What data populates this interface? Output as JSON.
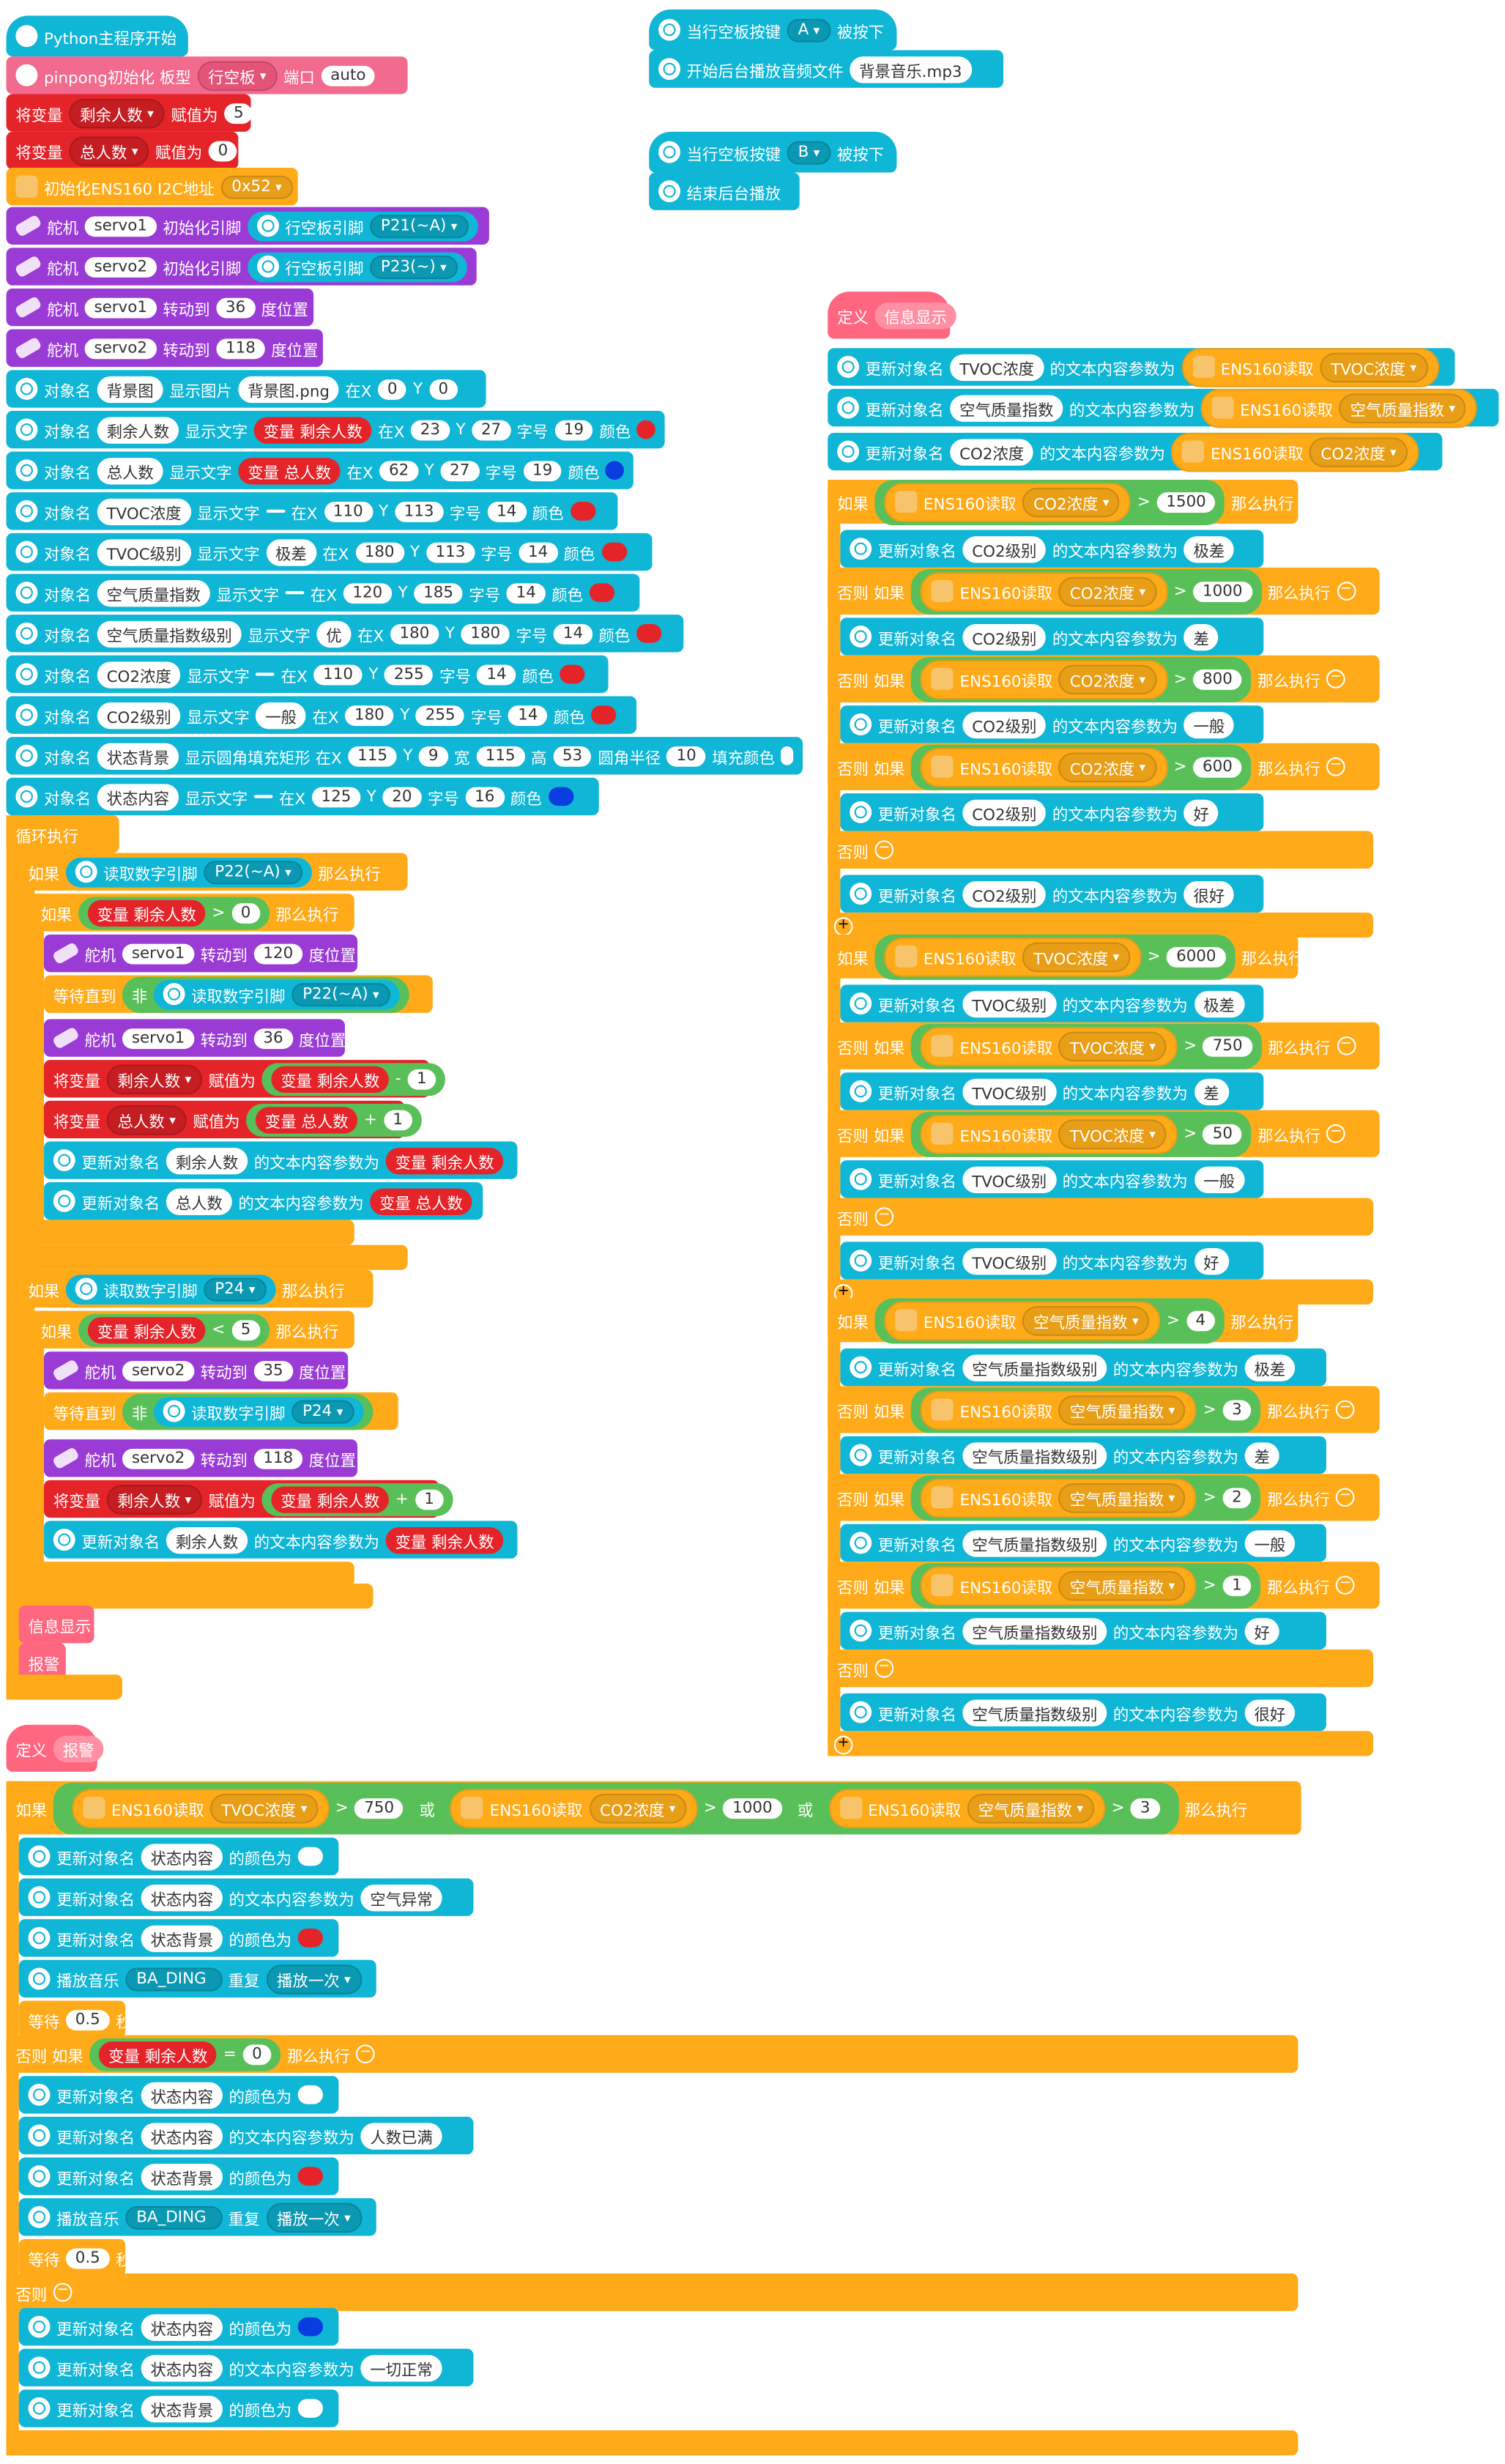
{
  "main": {
    "hat": "Python主程序开始",
    "init": {
      "label": "pinpong初始化 板型",
      "board": "行空板",
      "port_label": "端口",
      "port": "auto"
    },
    "set1": {
      "pre": "将变量",
      "var": "剩余人数",
      "mid": "赋值为",
      "val": "5"
    },
    "set2": {
      "pre": "将变量",
      "var": "总人数",
      "mid": "赋值为",
      "val": "0"
    },
    "ens": "初始化ENS160 I2C地址",
    "ens_addr": "0x52",
    "servo_init1": {
      "a": "舵机",
      "s": "servo1",
      "b": "初始化引脚",
      "c": "行空板引脚",
      "pin": "P21(~A)"
    },
    "servo_init2": {
      "a": "舵机",
      "s": "servo2",
      "b": "初始化引脚",
      "c": "行空板引脚",
      "pin": "P23(~)"
    },
    "servo_rot1": {
      "a": "舵机",
      "s": "servo1",
      "b": "转动到",
      "v": "36",
      "c": "度位置"
    },
    "servo_rot2": {
      "a": "舵机",
      "s": "servo2",
      "b": "转动到",
      "v": "118",
      "c": "度位置"
    },
    "objs": [
      {
        "t": "对象名",
        "n": "背景图",
        "a": "显示图片",
        "v": "背景图.png",
        "x": "0",
        "y": "0"
      },
      {
        "t": "对象名",
        "n": "剩余人数",
        "a": "显示文字",
        "vv": "变量 剩余人数",
        "x": "23",
        "y": "27",
        "fs": "19",
        "col": "#e5242a"
      },
      {
        "t": "对象名",
        "n": "总人数",
        "a": "显示文字",
        "vv": "变量 总人数",
        "x": "62",
        "y": "27",
        "fs": "19",
        "col": "#0a3de0"
      },
      {
        "t": "对象名",
        "n": "TVOC浓度",
        "a": "显示文字",
        "v": " ",
        "x": "110",
        "y": "113",
        "fs": "14",
        "col": "#e5242a"
      },
      {
        "t": "对象名",
        "n": "TVOC级别",
        "a": "显示文字",
        "v": "极差",
        "x": "180",
        "y": "113",
        "fs": "14",
        "col": "#e5242a"
      },
      {
        "t": "对象名",
        "n": "空气质量指数",
        "a": "显示文字",
        "v": " ",
        "x": "120",
        "y": "185",
        "fs": "14",
        "col": "#e5242a"
      },
      {
        "t": "对象名",
        "n": "空气质量指数级别",
        "a": "显示文字",
        "v": "优",
        "x": "180",
        "y": "180",
        "fs": "14",
        "col": "#e5242a"
      },
      {
        "t": "对象名",
        "n": "CO2浓度",
        "a": "显示文字",
        "v": " ",
        "x": "110",
        "y": "255",
        "fs": "14",
        "col": "#e5242a"
      },
      {
        "t": "对象名",
        "n": "CO2级别",
        "a": "显示文字",
        "v": "一般",
        "x": "180",
        "y": "255",
        "fs": "14",
        "col": "#e5242a"
      }
    ],
    "rect": {
      "t": "对象名",
      "n": "状态背景",
      "a": "显示圆角填充矩形 在X",
      "x": "115",
      "y": "9",
      "w": "115",
      "h": "53",
      "r": "10",
      "fill_label": "填充颜色"
    },
    "status": {
      "t": "对象名",
      "n": "状态内容",
      "a": "显示文字",
      "v": " ",
      "x": "125",
      "y": "20",
      "fs": "16",
      "col": "#0a3de0"
    },
    "labels": {
      "inX": "在X",
      "Y": "Y",
      "fs": "字号",
      "color": "颜色",
      "width": "宽",
      "height": "高",
      "radius": "圆角半径"
    },
    "loop": "循环执行",
    "if1": {
      "a": "如果",
      "b": "读取数字引脚",
      "pin": "P22(~A)",
      "c": "那么执行"
    },
    "if1a": {
      "a": "如果",
      "v": "变量 剩余人数",
      "op": ">",
      "n": "0",
      "c": "那么执行"
    },
    "s120": {
      "a": "舵机",
      "s": "servo1",
      "b": "转动到",
      "v": "120",
      "c": "度位置"
    },
    "wait1": {
      "a": "等待直到",
      "n": "非",
      "b": "读取数字引脚",
      "pin": "P22(~A)"
    },
    "s36": {
      "a": "舵机",
      "s": "servo1",
      "b": "转动到",
      "v": "36",
      "c": "度位置"
    },
    "dec": {
      "a": "将变量",
      "var": "剩余人数",
      "b": "赋值为",
      "v": "变量 剩余人数",
      "op": "-",
      "n": "1"
    },
    "inc": {
      "a": "将变量",
      "var": "总人数",
      "b": "赋值为",
      "v": "变量 总人数",
      "op": "+",
      "n": "1"
    },
    "upd1": {
      "a": "更新对象名",
      "n": "剩余人数",
      "b": "的文本内容参数为",
      "v": "变量 剩余人数"
    },
    "upd2": {
      "a": "更新对象名",
      "n": "总人数",
      "b": "的文本内容参数为",
      "v": "变量 总人数"
    },
    "if2": {
      "a": "如果",
      "b": "读取数字引脚",
      "pin": "P24",
      "c": "那么执行"
    },
    "if2a": {
      "a": "如果",
      "v": "变量 剩余人数",
      "op": "<",
      "n": "5",
      "c": "那么执行"
    },
    "s35": {
      "a": "舵机",
      "s": "servo2",
      "b": "转动到",
      "v": "35",
      "c": "度位置"
    },
    "wait2": {
      "a": "等待直到",
      "n": "非",
      "b": "读取数字引脚",
      "pin": "P24"
    },
    "s118": {
      "a": "舵机",
      "s": "servo2",
      "b": "转动到",
      "v": "118",
      "c": "度位置"
    },
    "inc2": {
      "a": "将变量",
      "var": "剩余人数",
      "b": "赋值为",
      "v": "变量 剩余人数",
      "op": "+",
      "n": "1"
    },
    "upd3": {
      "a": "更新对象名",
      "n": "剩余人数",
      "b": "的文本内容参数为",
      "v": "变量 剩余人数"
    },
    "call1": "信息显示",
    "call2": "报警"
  },
  "btnA": {
    "a": "当行空板按键",
    "k": "A",
    "b": "被按下",
    "c": "开始后台播放音频文件",
    "f": "背景音乐.mp3"
  },
  "btnB": {
    "a": "当行空板按键",
    "k": "B",
    "b": "被按下",
    "c": "结束后台播放"
  },
  "info": {
    "def": "定义",
    "name": "信息显示",
    "u_tvoc": {
      "a": "更新对象名",
      "n": "TVOC浓度",
      "b": "的文本内容参数为",
      "r": "ENS160读取",
      "k": "TVOC浓度"
    },
    "u_aqi": {
      "a": "更新对象名",
      "n": "空气质量指数",
      "b": "的文本内容参数为",
      "r": "ENS160读取",
      "k": "空气质量指数"
    },
    "u_co2": {
      "a": "更新对象名",
      "n": "CO2浓度",
      "b": "的文本内容参数为",
      "r": "ENS160读取",
      "k": "CO2浓度"
    },
    "kw": {
      "if": "如果",
      "elif": "否则 如果",
      "else": "否则",
      "then": "那么执行",
      "upd": "更新对象名",
      "param": "的文本内容参数为",
      "read": "ENS160读取"
    },
    "co2": {
      "k": "CO2浓度",
      "n": "CO2级别",
      "conds": [
        "1500",
        "1000",
        "800",
        "600"
      ],
      "vals": [
        "极差",
        "差",
        "一般",
        "好",
        "很好"
      ]
    },
    "tvoc": {
      "k": "TVOC浓度",
      "n": "TVOC级别",
      "conds": [
        "6000",
        "750",
        "50"
      ],
      "vals": [
        "极差",
        "差",
        "一般",
        "好"
      ]
    },
    "aqi": {
      "k": "空气质量指数",
      "n": "空气质量指数级别",
      "conds": [
        "4",
        "3",
        "2",
        "1"
      ],
      "vals": [
        "极差",
        "差",
        "一般",
        "好",
        "很好"
      ]
    }
  },
  "alarm": {
    "def": "定义",
    "name": "报警",
    "if": {
      "a": "如果",
      "r": "ENS160读取",
      "k1": "TVOC浓度",
      "n1": "750",
      "or": "或",
      "k2": "CO2浓度",
      "n2": "1000",
      "k3": "空气质量指数",
      "n3": "3",
      "c": "那么执行"
    },
    "elif": {
      "a": "否则 如果",
      "v": "变量 剩余人数",
      "op": "=",
      "n": "0",
      "c": "那么执行"
    },
    "else": "否则",
    "kw": {
      "upd": "更新对象名",
      "color": "的颜色为",
      "param": "的文本内容参数为",
      "play": "播放音乐",
      "tune": "BA_DING",
      "rep": "重复",
      "once": "播放一次",
      "wait": "等待",
      "sec": "秒"
    },
    "b1": {
      "n1": "状态内容",
      "n2": "状态内容",
      "txt": "空气异常",
      "n3": "状态背景",
      "w": "0.5"
    },
    "b2": {
      "n1": "状态内容",
      "n2": "状态内容",
      "txt": "人数已满",
      "n3": "状态背景",
      "w": "0.5"
    },
    "b3": {
      "n1": "状态内容",
      "n2": "状态内容",
      "txt": "一切正常",
      "n3": "状态背景"
    },
    "colors": {
      "white": "#ffffff",
      "red": "#e5242a",
      "blue": "#0a3de0"
    }
  }
}
